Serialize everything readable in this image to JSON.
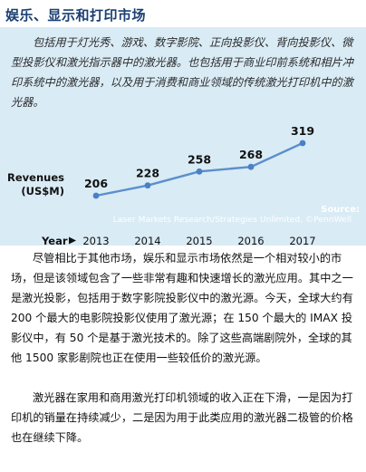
{
  "section_title": "娱乐、显示和打印市场",
  "sidebar": {
    "text": "包括用于灯光秀、游戏、数字影院、正向投影仪、背向投影仪、微型投影仪和激光指示器中的激光器。也包括用于商业印前系统和相片冲印系统中的激光器，以及用于消费和商业领域的传统激光打印机中的激光器。"
  },
  "chart_data": {
    "type": "line",
    "ylabel": "Revenues\n(US$M)",
    "xlabel": "Year",
    "x": [
      "2013",
      "2014",
      "2015",
      "2016",
      "2017"
    ],
    "values": [
      206,
      228,
      258,
      268,
      319
    ],
    "data_labels": [
      "206",
      "228",
      "258",
      "268",
      "319"
    ],
    "ylim": [
      150,
      340
    ],
    "source_label": "Source:",
    "source_text": "Laser Markets Research/Strategies Unlimited, ©PennWell",
    "line_color": "#5b8fcc",
    "marker_color": "#4a80c4"
  },
  "paragraphs": [
    "尽管相比于其他市场，娱乐和显示市场依然是一个相对较小的市场，但是该领域包含了一些非常有趣和快速增长的激光应用。其中之一是激光投影，包括用于数字影院投影仪中的激光源。今天，全球大约有 200 个最大的电影院投影仪使用了激光源；在 150 个最大的 IMAX 投影仪中，有 50 个是基于激光技术的。除了这些高端剧院外，全球的其他 1500 家影剧院也正在使用一些较低价的激光源。",
    "激光器在家用和商用激光打印机领域的收入正在下滑，一是因为打印机的销量在持续减少，二是因为用于此类应用的激光器二极管的价格也在继续下降。"
  ]
}
